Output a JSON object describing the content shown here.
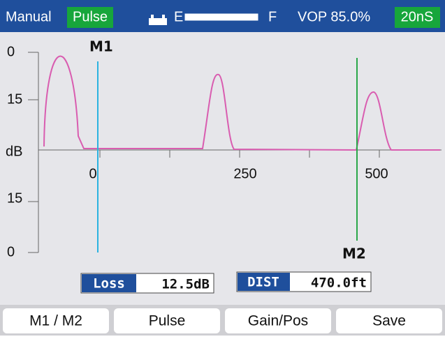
{
  "header": {
    "mode": "Manual",
    "pulse": "Pulse",
    "empty": "E",
    "full": "F",
    "vop": "VOP 85.0%",
    "width": "20nS"
  },
  "plot": {
    "y_labels": [
      "0",
      "15",
      "dB",
      "15",
      "0"
    ],
    "x_labels": [
      "0",
      "250",
      "500"
    ],
    "markers": [
      "M1",
      "M2"
    ]
  },
  "readouts": [
    {
      "label": "Loss",
      "value": "12.5dB"
    },
    {
      "label": "DIST",
      "value": "470.0ft"
    }
  ],
  "buttons": [
    "M1 / M2",
    "Pulse",
    "Gain/Pos",
    "Save"
  ]
}
